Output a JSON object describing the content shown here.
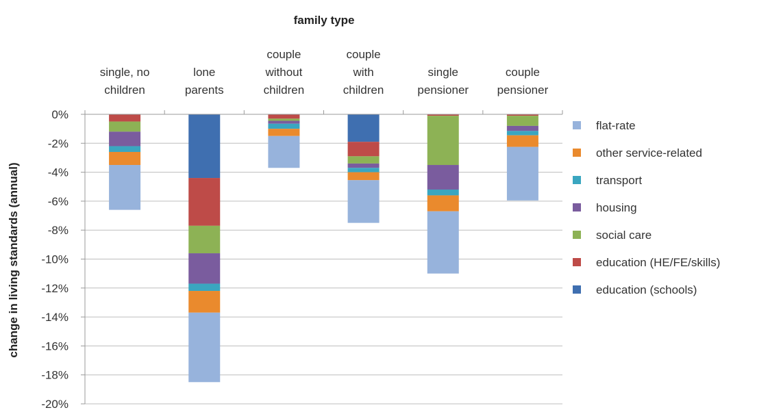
{
  "chart_data": {
    "type": "bar",
    "stacked": true,
    "title": "family type",
    "ylabel": "change in living standards (annual)",
    "xlabel": "",
    "categories": [
      "single, no children",
      "lone parents",
      "couple without children",
      "couple with children",
      "single pensioner",
      "couple pensioner"
    ],
    "category_lines": [
      [
        "single, no",
        "children"
      ],
      [
        "lone",
        "parents"
      ],
      [
        "couple",
        "without",
        "children"
      ],
      [
        "couple",
        "with",
        "children"
      ],
      [
        "single",
        "pensioner"
      ],
      [
        "couple",
        "pensioner"
      ]
    ],
    "y_ticks": [
      "0%",
      "-2%",
      "-4%",
      "-6%",
      "-8%",
      "-10%",
      "-12%",
      "-14%",
      "-16%",
      "-18%",
      "-20%"
    ],
    "ylim": [
      -20,
      0
    ],
    "grid": true,
    "legend_position": "right",
    "series": [
      {
        "name": "education (schools)",
        "color": "#3F6FB0",
        "values": [
          0,
          -4.4,
          0,
          -1.9,
          0,
          0
        ]
      },
      {
        "name": "education (HE/FE/skills)",
        "color": "#BE4B48",
        "values": [
          -0.5,
          -3.3,
          -0.3,
          -1.0,
          -0.1,
          -0.1
        ]
      },
      {
        "name": "social care",
        "color": "#8DB255",
        "values": [
          -0.7,
          -1.9,
          -0.15,
          -0.5,
          -3.4,
          -0.7
        ]
      },
      {
        "name": "housing",
        "color": "#7A5C9E",
        "values": [
          -1.0,
          -2.1,
          -0.2,
          -0.3,
          -1.7,
          -0.35
        ]
      },
      {
        "name": "transport",
        "color": "#3AA6C0",
        "values": [
          -0.4,
          -0.5,
          -0.35,
          -0.3,
          -0.4,
          -0.3
        ]
      },
      {
        "name": "other service-related",
        "color": "#EA8A2D",
        "values": [
          -0.9,
          -1.5,
          -0.5,
          -0.55,
          -1.1,
          -0.8
        ]
      },
      {
        "name": "flat-rate",
        "color": "#97B3DC",
        "values": [
          -3.1,
          -4.8,
          -2.2,
          -2.95,
          -4.3,
          -3.7
        ]
      }
    ],
    "legend_order": [
      "flat-rate",
      "other service-related",
      "transport",
      "housing",
      "social care",
      "education (HE/FE/skills)",
      "education (schools)"
    ]
  }
}
